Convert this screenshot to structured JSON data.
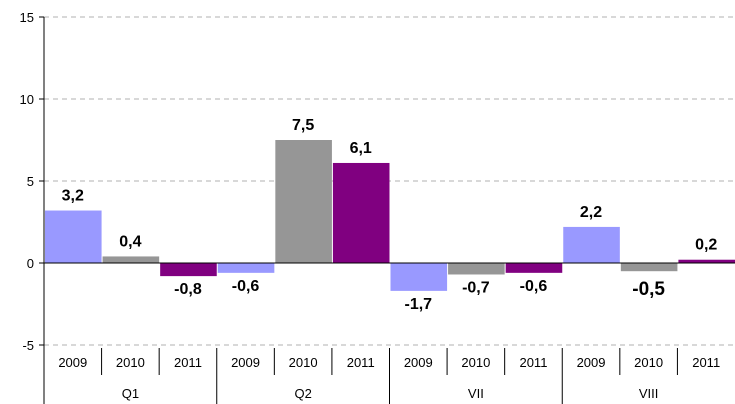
{
  "chart_data": {
    "type": "bar",
    "title": "",
    "xlabel": "",
    "ylabel": "",
    "ylim": [
      -5,
      15
    ],
    "yticks": [
      15,
      10,
      5,
      0,
      -5
    ],
    "grid": true,
    "legend": "none",
    "groups": [
      {
        "name": "Q1",
        "bars": [
          {
            "year": "2009",
            "value": 3.2,
            "label": "3,2"
          },
          {
            "year": "2010",
            "value": 0.4,
            "label": "0,4"
          },
          {
            "year": "2011",
            "value": -0.8,
            "label": "-0,8"
          }
        ]
      },
      {
        "name": "Q2",
        "bars": [
          {
            "year": "2009",
            "value": -0.6,
            "label": "-0,6"
          },
          {
            "year": "2010",
            "value": 7.5,
            "label": "7,5"
          },
          {
            "year": "2011",
            "value": 6.1,
            "label": "6,1"
          }
        ]
      },
      {
        "name": "VII",
        "bars": [
          {
            "year": "2009",
            "value": -1.7,
            "label": "-1,7"
          },
          {
            "year": "2010",
            "value": -0.7,
            "label": "-0,7"
          },
          {
            "year": "2011",
            "value": -0.6,
            "label": "-0,6"
          }
        ]
      },
      {
        "name": "VIII",
        "bars": [
          {
            "year": "2009",
            "value": 2.2,
            "label": "2,2"
          },
          {
            "year": "2010",
            "value": -0.5,
            "label": "-0,5",
            "emphasis": true
          },
          {
            "year": "2011",
            "value": 0.2,
            "label": "0,2"
          }
        ]
      }
    ],
    "colors": {
      "2009": "#9999ff",
      "2010": "#969696",
      "2011": "#800080"
    }
  }
}
